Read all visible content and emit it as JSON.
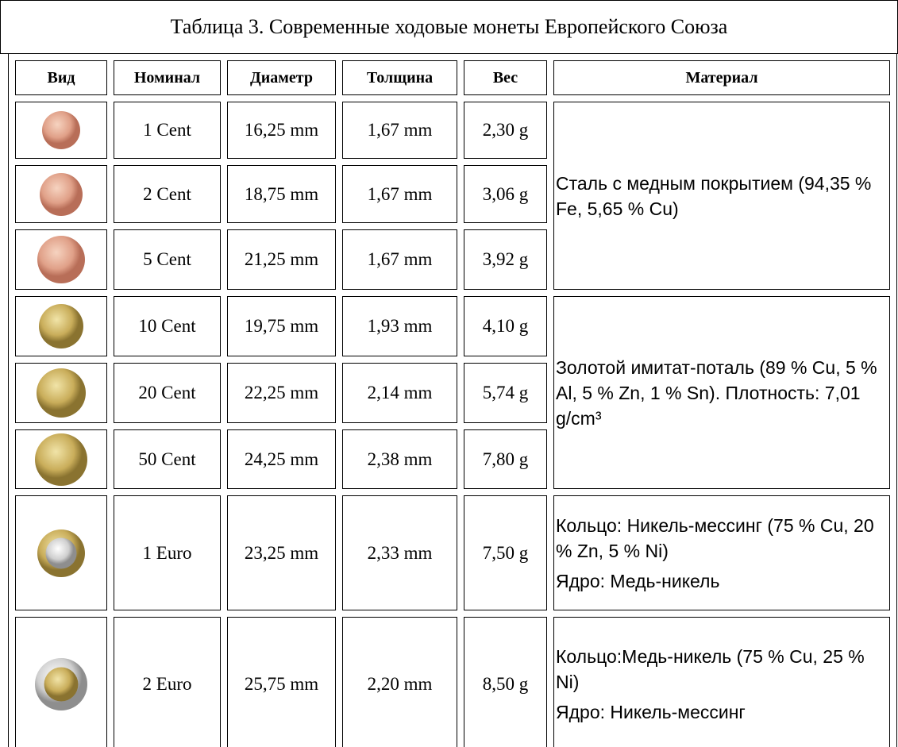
{
  "title": "Таблица 3. Современные ходовые монеты Европейского Союза",
  "table": {
    "header": [
      "Вид",
      "Номинал",
      "Диаметр",
      "Толщина",
      "Вес",
      "Материал"
    ],
    "rows": [
      [
        "1 Cent",
        "16,25 mm",
        "1,67 mm",
        "2,30 g"
      ],
      [
        "2 Cent",
        "18,75 mm",
        "1,67 mm",
        "3,06 g"
      ],
      [
        "5 Cent",
        "21,25 mm",
        "1,67 mm",
        "3,92 g"
      ],
      [
        "10 Cent",
        "19,75 mm",
        "1,93 mm",
        "4,10 g"
      ],
      [
        "20 Cent",
        "22,25 mm",
        "2,14 mm",
        "5,74 g"
      ],
      [
        "50 Cent",
        "24,25 mm",
        "2,38 mm",
        "7,80 g"
      ],
      [
        "1 Euro",
        "23,25 mm",
        "2,33 mm",
        "7,50 g"
      ],
      [
        "2 Euro",
        "25,75 mm",
        "2,20 mm",
        "8,50 g"
      ]
    ],
    "materials": [
      [
        "Сталь с медным покрытием (94,35 % Fe, 5,65 % Cu)"
      ],
      [
        "Золотой имитат-поталь (89 % Cu, 5 % Al, 5 % Zn, 1 % Sn).  Плотность: 7,01 g/cm³"
      ],
      [
        "Кольцо: Никель-мессинг (75 % Cu, 20 % Zn, 5 % Ni)",
        "Ядро: Медь-никель"
      ],
      [
        "Кольцо:Медь-никель (75 % Cu, 25 % Ni)",
        "Ядро: Никель-мессинг"
      ]
    ]
  }
}
